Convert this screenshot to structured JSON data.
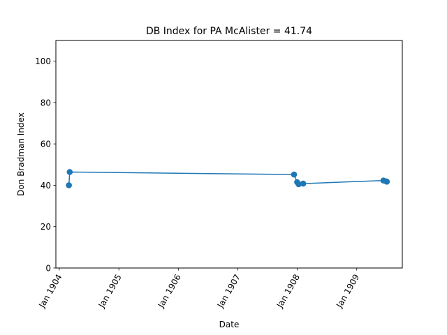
{
  "chart_data": {
    "type": "line",
    "title": "DB Index for PA McAlister = 41.74",
    "xlabel": "Date",
    "ylabel": "Don Bradman Index",
    "ylim": [
      0,
      110
    ],
    "xlim": [
      "1903-12-11",
      "1909-10-08"
    ],
    "yticks": [
      0,
      20,
      40,
      60,
      80,
      100
    ],
    "xticks": [
      {
        "date": "1904-01-01",
        "label": "Jan 1904"
      },
      {
        "date": "1905-01-01",
        "label": "Jan 1905"
      },
      {
        "date": "1906-01-01",
        "label": "Jan 1906"
      },
      {
        "date": "1907-01-01",
        "label": "Jan 1907"
      },
      {
        "date": "1908-01-01",
        "label": "Jan 1908"
      },
      {
        "date": "1909-01-01",
        "label": "Jan 1909"
      }
    ],
    "grid": false,
    "series": [
      {
        "color": "#1f77b4",
        "points": [
          {
            "x": "1904-02-29",
            "y": 40.0
          },
          {
            "x": "1904-03-05",
            "y": 46.4
          },
          {
            "x": "1907-12-13",
            "y": 45.2
          },
          {
            "x": "1908-01-01",
            "y": 41.5
          },
          {
            "x": "1908-01-10",
            "y": 40.5
          },
          {
            "x": "1908-02-07",
            "y": 40.8
          },
          {
            "x": "1909-06-14",
            "y": 42.3
          },
          {
            "x": "1909-07-01",
            "y": 41.9
          },
          {
            "x": "1909-07-05",
            "y": 41.74
          }
        ]
      }
    ]
  }
}
